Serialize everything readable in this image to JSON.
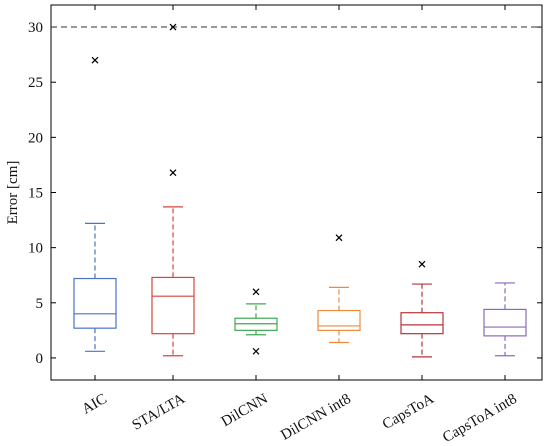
{
  "chart_data": {
    "type": "box",
    "title": "",
    "xlabel": "",
    "ylabel": "Error [cm]",
    "ylim": [
      -2,
      32
    ],
    "yticks": [
      0,
      5,
      10,
      15,
      20,
      25,
      30
    ],
    "reference_line": {
      "y": 30,
      "style": "dashed"
    },
    "grid": false,
    "categories": [
      "AIC",
      "STA/LTA",
      "DilCNN",
      "DilCNN int8",
      "CapsToA",
      "CapsToA int8"
    ],
    "series": [
      {
        "category": "AIC",
        "color": "#4a73c8",
        "whisker_low": 0.6,
        "q1": 2.7,
        "median": 4.0,
        "q3": 7.2,
        "whisker_high": 12.2,
        "outliers": [
          27.0
        ]
      },
      {
        "category": "STA/LTA",
        "color": "#d6453d",
        "whisker_low": 0.2,
        "q1": 2.2,
        "median": 5.6,
        "q3": 7.3,
        "whisker_high": 13.7,
        "outliers": [
          16.8,
          30.0
        ]
      },
      {
        "category": "DilCNN",
        "color": "#3fa852",
        "whisker_low": 2.1,
        "q1": 2.5,
        "median": 3.1,
        "q3": 3.6,
        "whisker_high": 4.9,
        "outliers": [
          6.0,
          0.6
        ]
      },
      {
        "category": "DilCNN int8",
        "color": "#ee8a3c",
        "whisker_low": 1.4,
        "q1": 2.5,
        "median": 2.9,
        "q3": 4.3,
        "whisker_high": 6.4,
        "outliers": [
          10.9
        ]
      },
      {
        "category": "CapsToA",
        "color": "#b5343a",
        "whisker_low": 0.1,
        "q1": 2.2,
        "median": 3.0,
        "q3": 4.1,
        "whisker_high": 6.7,
        "outliers": [
          8.5
        ]
      },
      {
        "category": "CapsToA int8",
        "color": "#8b6bb8",
        "whisker_low": 0.2,
        "q1": 2.0,
        "median": 2.8,
        "q3": 4.4,
        "whisker_high": 6.8,
        "outliers": []
      }
    ]
  }
}
